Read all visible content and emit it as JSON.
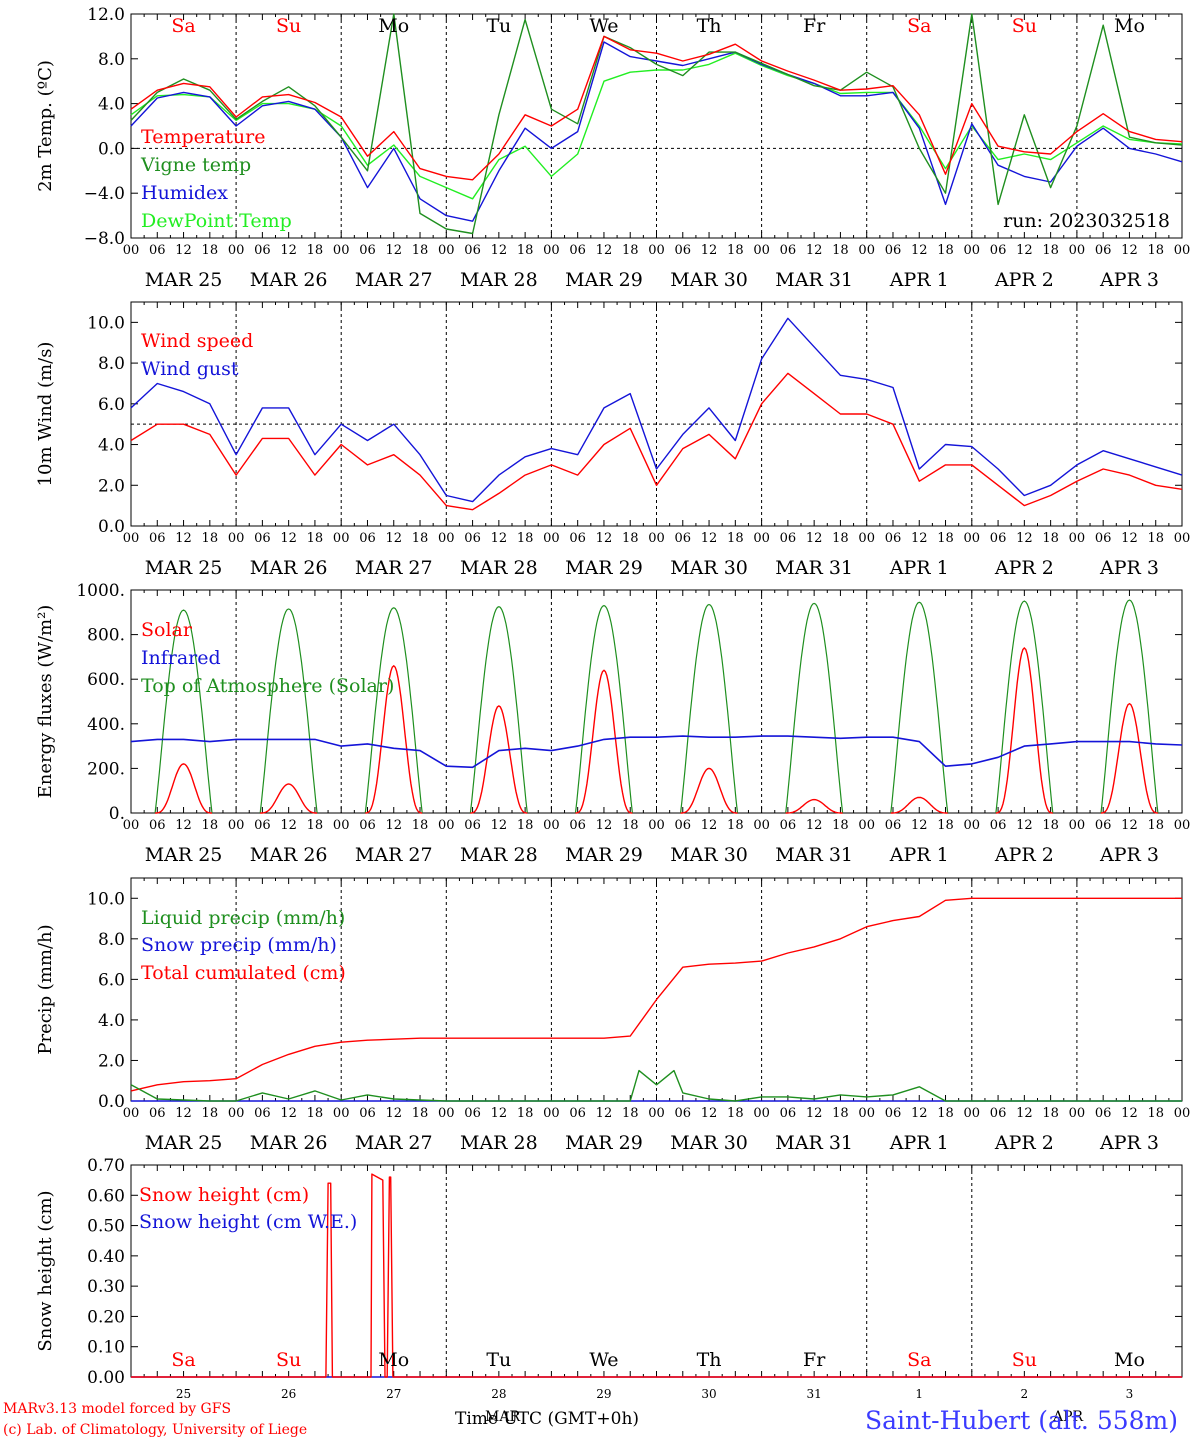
{
  "colors": {
    "red": "#ff0000",
    "green": "#1f8f1f",
    "blue": "#1414d8",
    "lightgreen": "#22ee22",
    "dashed": "#000000"
  },
  "x_axis": {
    "hour_labels": [
      "00",
      "06",
      "12",
      "18"
    ],
    "date_labels": [
      "MAR 25",
      "MAR 26",
      "MAR 27",
      "MAR 28",
      "MAR 29",
      "MAR 30",
      "MAR 31",
      "APR  1",
      "APR  2",
      "APR  3"
    ],
    "weekdays": [
      "Sa",
      "Su",
      "Mo",
      "Tu",
      "We",
      "Th",
      "Fr",
      "Sa",
      "Su",
      "Mo"
    ],
    "weekday_colors": [
      "red",
      "red",
      "black",
      "black",
      "black",
      "black",
      "black",
      "red",
      "red",
      "black"
    ],
    "bottom_day_numbers": [
      "25",
      "26",
      "27",
      "28",
      "29",
      "30",
      "31",
      "1",
      "2",
      "3"
    ]
  },
  "footer": {
    "model_line": "MARv3.13 model forced by GFS",
    "lab_line": "(c) Lab. of Climatology, University of Liege",
    "time_label": "Time UTC (GMT+0h)",
    "month_label_mar": "MAR",
    "month_label_apr": "APR",
    "station": "Saint-Hubert (alt. 558m)"
  },
  "chart_data": [
    {
      "type": "line",
      "ylabel": "2m Temp. (ºC)",
      "ylim": [
        -8,
        12
      ],
      "yticks": [
        "12.0",
        "8.0",
        "4.0",
        "0.0",
        "−4.0",
        "−8.0"
      ],
      "ytick_values": [
        12,
        8,
        4,
        0,
        -4,
        -8
      ],
      "run_label": "run: 2023032518",
      "series": [
        {
          "name": "Temperature",
          "color": "red",
          "x": [
            0,
            6,
            12,
            18,
            24,
            30,
            36,
            42,
            48,
            54,
            60,
            66,
            72,
            78,
            84,
            90,
            96,
            102,
            108,
            114,
            120,
            126,
            132,
            138,
            144,
            150,
            156,
            162,
            168,
            174,
            180,
            186,
            192,
            198,
            204,
            210,
            216,
            222,
            228,
            234,
            240
          ],
          "values": [
            3.5,
            5.2,
            5.8,
            5.5,
            2.8,
            4.6,
            4.8,
            4.1,
            2.8,
            -0.7,
            1.5,
            -1.8,
            -2.5,
            -2.8,
            -0.5,
            3.0,
            2.0,
            3.5,
            10.0,
            8.8,
            8.5,
            7.8,
            8.4,
            9.3,
            7.8,
            6.9,
            6.1,
            5.2,
            5.3,
            5.6,
            3.0,
            -2.3,
            4.0,
            0.2,
            -0.3,
            -0.5,
            1.5,
            3.1,
            1.5,
            0.8,
            0.6
          ]
        },
        {
          "name": "Vigne temp",
          "color": "green",
          "x": [
            0,
            6,
            12,
            18,
            24,
            30,
            36,
            42,
            48,
            54,
            60,
            66,
            72,
            78,
            84,
            90,
            96,
            102,
            108,
            114,
            120,
            126,
            132,
            138,
            144,
            150,
            156,
            162,
            168,
            174,
            180,
            186,
            192,
            198,
            204,
            210,
            216,
            222,
            228,
            234,
            240
          ],
          "values": [
            2.5,
            5.0,
            6.2,
            5.2,
            2.6,
            4.2,
            5.5,
            3.8,
            1.0,
            -2.0,
            12.0,
            -5.8,
            -7.2,
            -7.6,
            3.0,
            11.5,
            3.5,
            2.2,
            10.0,
            9.0,
            7.5,
            6.5,
            8.6,
            8.6,
            7.6,
            6.6,
            5.6,
            5.2,
            6.8,
            5.5,
            0.0,
            -4.0,
            12.0,
            -5.0,
            3.0,
            -3.5,
            2.0,
            11.0,
            1.0,
            0.5,
            0.3
          ]
        },
        {
          "name": "Humidex",
          "color": "blue",
          "x": [
            0,
            6,
            12,
            18,
            24,
            30,
            36,
            42,
            48,
            54,
            60,
            66,
            72,
            78,
            84,
            90,
            96,
            102,
            108,
            114,
            120,
            126,
            132,
            138,
            144,
            150,
            156,
            162,
            168,
            174,
            180,
            186,
            192,
            198,
            204,
            210,
            216,
            222,
            228,
            234,
            240
          ],
          "values": [
            2.0,
            4.5,
            5.0,
            4.6,
            2.0,
            3.8,
            4.2,
            3.5,
            1.0,
            -3.5,
            0.0,
            -4.5,
            -6.0,
            -6.5,
            -2.0,
            1.8,
            0.0,
            1.5,
            9.5,
            8.2,
            7.8,
            7.4,
            8.0,
            8.6,
            7.5,
            6.6,
            5.8,
            4.7,
            4.7,
            5.0,
            1.8,
            -5.0,
            2.2,
            -1.5,
            -2.5,
            -3.0,
            0.2,
            1.8,
            0.0,
            -0.5,
            -1.2
          ]
        },
        {
          "name": "DewPoint Temp",
          "color": "lightgreen",
          "x": [
            0,
            6,
            12,
            18,
            24,
            30,
            36,
            42,
            48,
            54,
            60,
            66,
            72,
            78,
            84,
            90,
            96,
            102,
            108,
            114,
            120,
            126,
            132,
            138,
            144,
            150,
            156,
            162,
            168,
            174,
            180,
            186,
            192,
            198,
            204,
            210,
            216,
            222,
            228,
            234,
            240
          ],
          "values": [
            3.0,
            4.7,
            4.8,
            4.6,
            2.5,
            4.0,
            4.0,
            3.5,
            2.0,
            -1.5,
            0.3,
            -2.5,
            -3.5,
            -4.5,
            -1.0,
            0.2,
            -2.5,
            -0.5,
            6.0,
            6.8,
            7.0,
            7.0,
            7.5,
            8.5,
            7.4,
            6.5,
            5.8,
            4.9,
            5.0,
            5.0,
            2.0,
            -1.8,
            2.0,
            -1.0,
            -0.5,
            -1.0,
            0.5,
            2.0,
            0.8,
            0.5,
            0.4
          ]
        }
      ]
    },
    {
      "type": "line",
      "ylabel": "10m Wind (m/s)",
      "ylim": [
        0,
        11
      ],
      "yticks": [
        "10.0",
        "8.0",
        "6.0",
        "4.0",
        "2.0",
        "0.0"
      ],
      "ytick_values": [
        10,
        8,
        6,
        4,
        2,
        0
      ],
      "dashed_y": 5,
      "series": [
        {
          "name": "Wind speed",
          "color": "red",
          "x": [
            0,
            6,
            12,
            18,
            24,
            30,
            36,
            42,
            48,
            54,
            60,
            66,
            72,
            78,
            84,
            90,
            96,
            102,
            108,
            114,
            120,
            126,
            132,
            138,
            144,
            150,
            156,
            162,
            168,
            174,
            180,
            186,
            192,
            198,
            204,
            210,
            216,
            222,
            228,
            234,
            240
          ],
          "values": [
            4.2,
            5.0,
            5.0,
            4.5,
            2.5,
            4.3,
            4.3,
            2.5,
            4.0,
            3.0,
            3.5,
            2.5,
            1.0,
            0.8,
            1.6,
            2.5,
            3.0,
            2.5,
            4.0,
            4.8,
            2.0,
            3.8,
            4.5,
            3.3,
            6.0,
            7.5,
            6.5,
            5.5,
            5.5,
            5.0,
            2.2,
            3.0,
            3.0,
            2.0,
            1.0,
            1.5,
            2.2,
            2.8,
            2.5,
            2.0,
            1.8
          ]
        },
        {
          "name": "Wind gust",
          "color": "blue",
          "x": [
            0,
            6,
            12,
            18,
            24,
            30,
            36,
            42,
            48,
            54,
            60,
            66,
            72,
            78,
            84,
            90,
            96,
            102,
            108,
            114,
            120,
            126,
            132,
            138,
            144,
            150,
            156,
            162,
            168,
            174,
            180,
            186,
            192,
            198,
            204,
            210,
            216,
            222,
            228,
            234,
            240
          ],
          "values": [
            5.8,
            7.0,
            6.6,
            6.0,
            3.5,
            5.8,
            5.8,
            3.5,
            5.0,
            4.2,
            5.0,
            3.5,
            1.5,
            1.2,
            2.5,
            3.4,
            3.8,
            3.5,
            5.8,
            6.5,
            2.8,
            4.5,
            5.8,
            4.2,
            8.2,
            10.2,
            8.8,
            7.4,
            7.2,
            6.8,
            2.8,
            4.0,
            3.9,
            2.8,
            1.5,
            2.0,
            3.0,
            3.7,
            3.3,
            2.9,
            2.5
          ]
        }
      ]
    },
    {
      "type": "line",
      "ylabel": "Energy fluxes (W/m²)",
      "ylim": [
        0,
        1000
      ],
      "yticks": [
        "1000.",
        "800.",
        "600.",
        "400.",
        "200.",
        "0."
      ],
      "ytick_values": [
        1000,
        800,
        600,
        400,
        200,
        0
      ],
      "series": [
        {
          "name": "Solar",
          "color": "red",
          "day_peaks": [
            220,
            130,
            660,
            480,
            640,
            200,
            60,
            70,
            740,
            490
          ]
        },
        {
          "name": "Infrared",
          "color": "blue",
          "x": [
            0,
            6,
            12,
            18,
            24,
            30,
            36,
            42,
            48,
            54,
            60,
            66,
            72,
            78,
            84,
            90,
            96,
            102,
            108,
            114,
            120,
            126,
            132,
            138,
            144,
            150,
            156,
            162,
            168,
            174,
            180,
            186,
            192,
            198,
            204,
            210,
            216,
            222,
            228,
            234,
            240
          ],
          "values": [
            320,
            330,
            330,
            320,
            330,
            330,
            330,
            330,
            300,
            310,
            290,
            280,
            210,
            205,
            280,
            290,
            280,
            300,
            330,
            340,
            340,
            345,
            340,
            340,
            345,
            345,
            340,
            335,
            340,
            340,
            320,
            210,
            220,
            250,
            300,
            310,
            320,
            320,
            320,
            310,
            305
          ]
        },
        {
          "name": "Top of Atmosphere (Solar)",
          "color": "green",
          "day_peaks": [
            910,
            915,
            920,
            925,
            930,
            935,
            940,
            945,
            950,
            955
          ]
        }
      ]
    },
    {
      "type": "line",
      "ylabel": "Precip (mm/h)",
      "ylim": [
        0,
        11
      ],
      "yticks": [
        "10.0",
        "8.0",
        "6.0",
        "4.0",
        "2.0",
        "0.0"
      ],
      "ytick_values": [
        10,
        8,
        6,
        4,
        2,
        0
      ],
      "series": [
        {
          "name": "Liquid precip (mm/h)",
          "color": "green",
          "x": [
            0,
            6,
            12,
            18,
            24,
            30,
            36,
            42,
            48,
            54,
            60,
            66,
            72,
            78,
            84,
            90,
            96,
            102,
            108,
            114,
            116,
            120,
            124,
            126,
            132,
            138,
            144,
            150,
            156,
            162,
            168,
            174,
            180,
            186,
            192,
            198,
            204,
            210,
            216,
            222,
            228,
            234,
            240
          ],
          "values": [
            0.8,
            0.1,
            0.05,
            0,
            0,
            0.4,
            0.1,
            0.5,
            0.05,
            0.3,
            0.1,
            0.05,
            0,
            0,
            0,
            0,
            0,
            0,
            0,
            0,
            1.5,
            0.8,
            1.5,
            0.4,
            0.1,
            0,
            0.2,
            0.2,
            0.1,
            0.3,
            0.2,
            0.3,
            0.7,
            0,
            0,
            0,
            0,
            0,
            0,
            0,
            0,
            0,
            0
          ]
        },
        {
          "name": "Snow precip (mm/h)",
          "color": "blue",
          "x": [
            0,
            240
          ],
          "values": [
            0,
            0
          ]
        },
        {
          "name": "Total cumulated (cm)",
          "color": "red",
          "x": [
            0,
            6,
            12,
            18,
            24,
            30,
            36,
            42,
            48,
            54,
            60,
            66,
            72,
            78,
            84,
            90,
            96,
            102,
            108,
            114,
            120,
            126,
            132,
            138,
            144,
            150,
            156,
            162,
            168,
            174,
            180,
            186,
            192,
            198,
            204,
            210,
            216,
            222,
            228,
            234,
            240
          ],
          "values": [
            0.5,
            0.8,
            0.95,
            1.0,
            1.1,
            1.8,
            2.3,
            2.7,
            2.9,
            3.0,
            3.05,
            3.1,
            3.1,
            3.1,
            3.1,
            3.1,
            3.1,
            3.1,
            3.1,
            3.2,
            5.0,
            6.6,
            6.75,
            6.8,
            6.9,
            7.3,
            7.6,
            8.0,
            8.6,
            8.9,
            9.1,
            9.9,
            10.0,
            10.0,
            10.0,
            10.0,
            10.0,
            10.0,
            10.0,
            10.0,
            10.0
          ]
        }
      ]
    },
    {
      "type": "line",
      "ylabel": "Snow height (cm)",
      "ylim": [
        0,
        0.7
      ],
      "yticks": [
        "0.70",
        "0.60",
        "0.50",
        "0.40",
        "0.30",
        "0.20",
        "0.10",
        "0.00"
      ],
      "ytick_values": [
        0.7,
        0.6,
        0.5,
        0.4,
        0.3,
        0.2,
        0.1,
        0
      ],
      "series": [
        {
          "name": "Snow height (cm)",
          "color": "red",
          "x": [
            0,
            44.5,
            45,
            45.6,
            46,
            54.8,
            55,
            57.5,
            58,
            58.5,
            59,
            59.3,
            59.8,
            60.2,
            240
          ],
          "values": [
            0,
            0,
            0.64,
            0.64,
            0,
            0,
            0.67,
            0.65,
            0,
            0,
            0.66,
            0.66,
            0,
            0,
            0
          ]
        },
        {
          "name": "Snow height (cm W.E.)",
          "color": "blue",
          "x": [
            0,
            240
          ],
          "values": [
            0,
            0
          ]
        }
      ]
    }
  ]
}
